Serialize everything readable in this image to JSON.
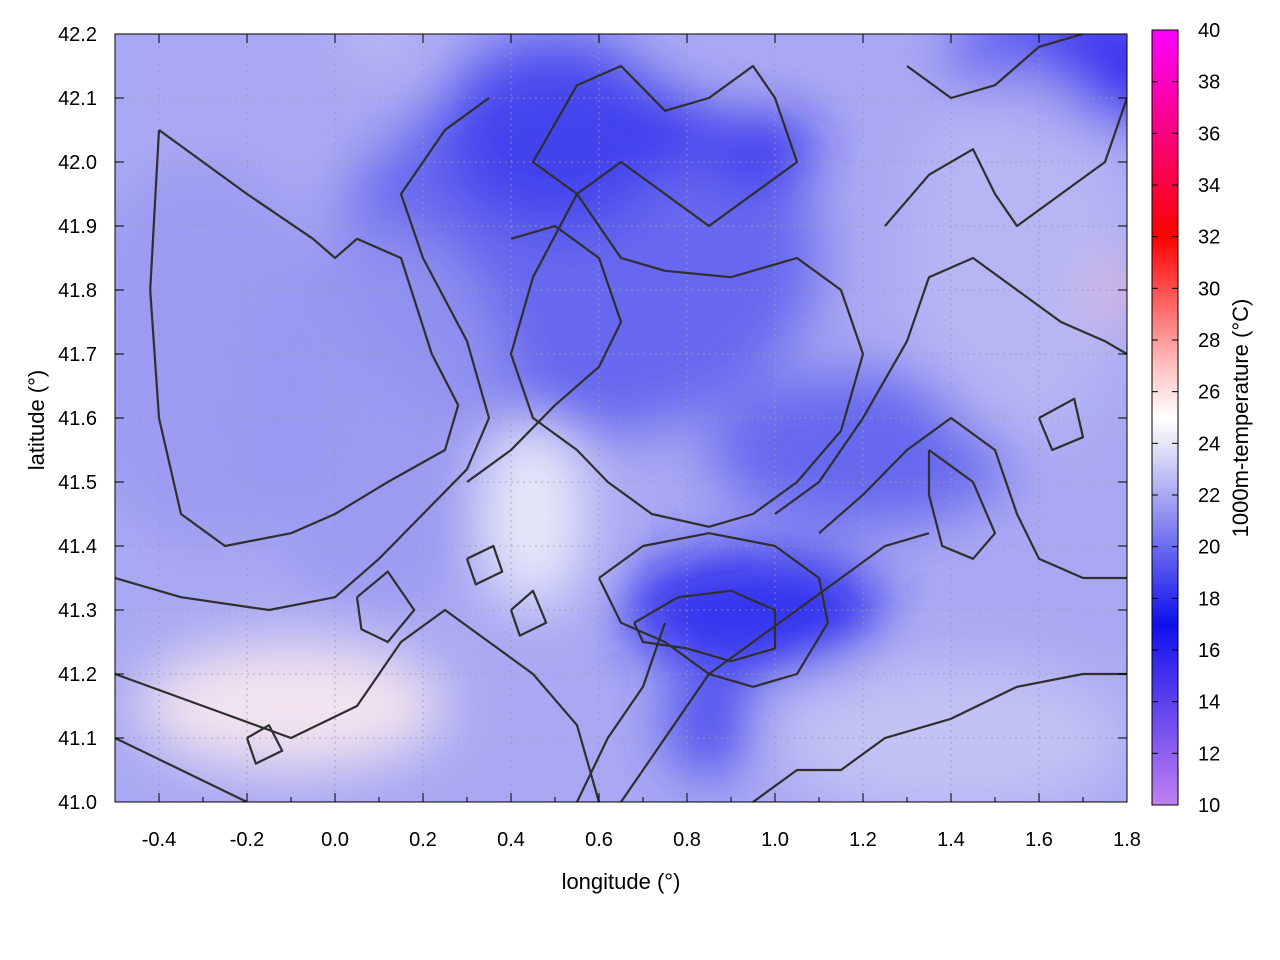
{
  "chart_data": {
    "type": "heatmap",
    "title": "",
    "xlabel": "longitude (°)",
    "ylabel": "latitude (°)",
    "colorbar_label": "1000m-temperature (°C)",
    "xlim": [
      -0.5,
      1.8
    ],
    "ylim": [
      41.0,
      42.2
    ],
    "clim": [
      10,
      40
    ],
    "x_ticks": [
      "-0.4",
      "-0.2",
      "0.0",
      "0.2",
      "0.4",
      "0.6",
      "0.8",
      "1.0",
      "1.2",
      "1.4",
      "1.6",
      "1.8"
    ],
    "x_tick_values": [
      -0.4,
      -0.2,
      0.0,
      0.2,
      0.4,
      0.6,
      0.8,
      1.0,
      1.2,
      1.4,
      1.6,
      1.8
    ],
    "y_ticks": [
      "41.0",
      "41.1",
      "41.2",
      "41.3",
      "41.4",
      "41.5",
      "41.6",
      "41.7",
      "41.8",
      "41.9",
      "42.0",
      "42.1",
      "42.2"
    ],
    "y_tick_values": [
      41.0,
      41.1,
      41.2,
      41.3,
      41.4,
      41.5,
      41.6,
      41.7,
      41.8,
      41.9,
      42.0,
      42.1,
      42.2
    ],
    "colorbar_ticks": [
      "10",
      "12",
      "14",
      "16",
      "18",
      "20",
      "22",
      "24",
      "26",
      "28",
      "30",
      "32",
      "34",
      "36",
      "38",
      "40"
    ],
    "colorbar_tick_values": [
      10,
      12,
      14,
      16,
      18,
      20,
      22,
      24,
      26,
      28,
      30,
      32,
      34,
      36,
      38,
      40
    ],
    "colormap": [
      {
        "value": 10,
        "color": "#c080f0"
      },
      {
        "value": 17,
        "color": "#1010ee"
      },
      {
        "value": 21,
        "color": "#8a8af0"
      },
      {
        "value": 24,
        "color": "#e6e6f8"
      },
      {
        "value": 25,
        "color": "#ffffff"
      },
      {
        "value": 27,
        "color": "#ffc0c0"
      },
      {
        "value": 32,
        "color": "#ff0000"
      },
      {
        "value": 40,
        "color": "#ff00ff"
      }
    ],
    "grid": true,
    "field_regions": [
      {
        "lon": 0.55,
        "lat": 41.85,
        "temp": 19.5,
        "rx": 0.55,
        "ry": 0.28
      },
      {
        "lon": 0.5,
        "lat": 42.05,
        "temp": 18.5,
        "rx": 0.25,
        "ry": 0.15
      },
      {
        "lon": 0.78,
        "lat": 42.05,
        "temp": 16.0,
        "rx": 0.08,
        "ry": 0.04
      },
      {
        "lon": 0.98,
        "lat": 42.02,
        "temp": 16.5,
        "rx": 0.12,
        "ry": 0.05
      },
      {
        "lon": 1.7,
        "lat": 42.15,
        "temp": 16.0,
        "rx": 0.3,
        "ry": 0.1
      },
      {
        "lon": 0.95,
        "lat": 41.3,
        "temp": 17.5,
        "rx": 0.3,
        "ry": 0.1
      },
      {
        "lon": 0.85,
        "lat": 41.12,
        "temp": 18.5,
        "rx": 0.1,
        "ry": 0.08
      },
      {
        "lon": 1.2,
        "lat": 41.55,
        "temp": 19.5,
        "rx": 0.35,
        "ry": 0.12
      },
      {
        "lon": -0.3,
        "lat": 41.7,
        "temp": 21.5,
        "rx": 0.3,
        "ry": 0.3
      },
      {
        "lon": 0.1,
        "lat": 41.6,
        "temp": 21.5,
        "rx": 0.3,
        "ry": 0.3
      },
      {
        "lon": 1.55,
        "lat": 41.85,
        "temp": 22.5,
        "rx": 0.25,
        "ry": 0.3
      },
      {
        "lon": 0.45,
        "lat": 41.45,
        "temp": 24.5,
        "rx": 0.12,
        "ry": 0.15
      },
      {
        "lon": -0.1,
        "lat": 41.15,
        "temp": 25.5,
        "rx": 0.35,
        "ry": 0.1
      },
      {
        "lon": 1.4,
        "lat": 41.1,
        "temp": 23.0,
        "rx": 0.4,
        "ry": 0.12
      },
      {
        "lon": 1.77,
        "lat": 41.8,
        "temp": 27.0,
        "rx": 0.04,
        "ry": 0.05
      },
      {
        "lon": 0.1,
        "lat": 42.2,
        "temp": 25.5,
        "rx": 0.05,
        "ry": 0.02
      }
    ],
    "contours": [
      [
        [
          -0.4,
          42.05
        ],
        [
          -0.2,
          41.95
        ],
        [
          -0.05,
          41.88
        ],
        [
          0.0,
          41.85
        ],
        [
          0.05,
          41.88
        ],
        [
          0.15,
          41.85
        ],
        [
          0.22,
          41.7
        ],
        [
          0.28,
          41.62
        ],
        [
          0.25,
          41.55
        ],
        [
          0.12,
          41.5
        ],
        [
          0.0,
          41.45
        ],
        [
          -0.1,
          41.42
        ],
        [
          -0.25,
          41.4
        ],
        [
          -0.35,
          41.45
        ],
        [
          -0.4,
          41.6
        ],
        [
          -0.42,
          41.8
        ],
        [
          -0.4,
          42.05
        ]
      ],
      [
        [
          -0.5,
          41.35
        ],
        [
          -0.35,
          41.32
        ],
        [
          -0.15,
          41.3
        ],
        [
          0.0,
          41.32
        ],
        [
          0.1,
          41.38
        ],
        [
          0.2,
          41.45
        ],
        [
          0.3,
          41.52
        ],
        [
          0.35,
          41.6
        ],
        [
          0.3,
          41.72
        ],
        [
          0.2,
          41.85
        ],
        [
          0.15,
          41.95
        ],
        [
          0.25,
          42.05
        ],
        [
          0.35,
          42.1
        ]
      ],
      [
        [
          -0.5,
          41.2
        ],
        [
          -0.3,
          41.15
        ],
        [
          -0.1,
          41.1
        ],
        [
          0.05,
          41.15
        ],
        [
          0.15,
          41.25
        ],
        [
          0.25,
          41.3
        ],
        [
          0.35,
          41.25
        ],
        [
          0.45,
          41.2
        ],
        [
          0.55,
          41.12
        ],
        [
          0.6,
          41.0
        ]
      ],
      [
        [
          -0.5,
          41.1
        ],
        [
          -0.35,
          41.05
        ],
        [
          -0.2,
          41.0
        ]
      ],
      [
        [
          0.45,
          42.0
        ],
        [
          0.55,
          42.12
        ],
        [
          0.65,
          42.15
        ],
        [
          0.75,
          42.08
        ],
        [
          0.85,
          42.1
        ],
        [
          0.95,
          42.15
        ],
        [
          1.0,
          42.1
        ],
        [
          1.05,
          42.0
        ],
        [
          0.95,
          41.95
        ],
        [
          0.85,
          41.9
        ],
        [
          0.75,
          41.95
        ],
        [
          0.65,
          42.0
        ],
        [
          0.55,
          41.95
        ],
        [
          0.45,
          42.0
        ]
      ],
      [
        [
          0.55,
          41.95
        ],
        [
          0.65,
          41.85
        ],
        [
          0.75,
          41.83
        ],
        [
          0.9,
          41.82
        ],
        [
          1.05,
          41.85
        ],
        [
          1.15,
          41.8
        ],
        [
          1.2,
          41.7
        ],
        [
          1.15,
          41.58
        ],
        [
          1.05,
          41.5
        ],
        [
          0.95,
          41.45
        ],
        [
          0.85,
          41.43
        ],
        [
          0.72,
          41.45
        ],
        [
          0.62,
          41.5
        ],
        [
          0.55,
          41.55
        ],
        [
          0.45,
          41.6
        ],
        [
          0.4,
          41.7
        ],
        [
          0.45,
          41.82
        ],
        [
          0.55,
          41.95
        ]
      ],
      [
        [
          0.3,
          41.5
        ],
        [
          0.4,
          41.55
        ],
        [
          0.5,
          41.62
        ],
        [
          0.6,
          41.68
        ],
        [
          0.65,
          41.75
        ],
        [
          0.6,
          41.85
        ],
        [
          0.5,
          41.9
        ],
        [
          0.4,
          41.88
        ]
      ],
      [
        [
          0.6,
          41.35
        ],
        [
          0.7,
          41.4
        ],
        [
          0.85,
          41.42
        ],
        [
          1.0,
          41.4
        ],
        [
          1.1,
          41.35
        ],
        [
          1.12,
          41.28
        ],
        [
          1.05,
          41.2
        ],
        [
          0.95,
          41.18
        ],
        [
          0.85,
          41.2
        ],
        [
          0.75,
          41.25
        ],
        [
          0.65,
          41.28
        ],
        [
          0.6,
          41.35
        ]
      ],
      [
        [
          0.68,
          41.28
        ],
        [
          0.78,
          41.32
        ],
        [
          0.9,
          41.33
        ],
        [
          1.0,
          41.3
        ],
        [
          1.0,
          41.24
        ],
        [
          0.9,
          41.22
        ],
        [
          0.8,
          41.24
        ],
        [
          0.7,
          41.25
        ],
        [
          0.68,
          41.28
        ]
      ],
      [
        [
          0.65,
          41.0
        ],
        [
          0.75,
          41.1
        ],
        [
          0.85,
          41.2
        ],
        [
          0.95,
          41.25
        ],
        [
          1.05,
          41.3
        ],
        [
          1.15,
          41.35
        ],
        [
          1.25,
          41.4
        ],
        [
          1.35,
          41.42
        ]
      ],
      [
        [
          0.55,
          41.0
        ],
        [
          0.62,
          41.1
        ],
        [
          0.7,
          41.18
        ],
        [
          0.75,
          41.28
        ]
      ],
      [
        [
          0.95,
          41.0
        ],
        [
          1.05,
          41.05
        ],
        [
          1.15,
          41.05
        ],
        [
          1.25,
          41.1
        ],
        [
          1.4,
          41.13
        ],
        [
          1.55,
          41.18
        ],
        [
          1.7,
          41.2
        ],
        [
          1.8,
          41.2
        ]
      ],
      [
        [
          1.25,
          41.9
        ],
        [
          1.35,
          41.98
        ],
        [
          1.45,
          42.02
        ],
        [
          1.5,
          41.95
        ],
        [
          1.55,
          41.9
        ],
        [
          1.65,
          41.95
        ],
        [
          1.75,
          42.0
        ],
        [
          1.8,
          42.1
        ]
      ],
      [
        [
          1.3,
          42.15
        ],
        [
          1.4,
          42.1
        ],
        [
          1.5,
          42.12
        ],
        [
          1.6,
          42.18
        ],
        [
          1.7,
          42.2
        ]
      ],
      [
        [
          1.0,
          41.45
        ],
        [
          1.1,
          41.5
        ],
        [
          1.2,
          41.6
        ],
        [
          1.3,
          41.72
        ],
        [
          1.35,
          41.82
        ],
        [
          1.45,
          41.85
        ],
        [
          1.55,
          41.8
        ],
        [
          1.65,
          41.75
        ],
        [
          1.75,
          41.72
        ],
        [
          1.8,
          41.7
        ]
      ],
      [
        [
          1.1,
          41.42
        ],
        [
          1.2,
          41.48
        ],
        [
          1.3,
          41.55
        ],
        [
          1.4,
          41.6
        ],
        [
          1.5,
          41.55
        ],
        [
          1.55,
          41.45
        ],
        [
          1.6,
          41.38
        ],
        [
          1.7,
          41.35
        ],
        [
          1.8,
          41.35
        ]
      ],
      [
        [
          1.35,
          41.55
        ],
        [
          1.45,
          41.5
        ],
        [
          1.5,
          41.42
        ],
        [
          1.45,
          41.38
        ],
        [
          1.38,
          41.4
        ],
        [
          1.35,
          41.48
        ],
        [
          1.35,
          41.55
        ]
      ],
      [
        [
          1.6,
          41.6
        ],
        [
          1.68,
          41.63
        ],
        [
          1.7,
          41.57
        ],
        [
          1.63,
          41.55
        ],
        [
          1.6,
          41.6
        ]
      ],
      [
        [
          0.05,
          41.32
        ],
        [
          0.12,
          41.36
        ],
        [
          0.18,
          41.3
        ],
        [
          0.12,
          41.25
        ],
        [
          0.06,
          41.27
        ],
        [
          0.05,
          41.32
        ]
      ],
      [
        [
          -0.2,
          41.1
        ],
        [
          -0.15,
          41.12
        ],
        [
          -0.12,
          41.08
        ],
        [
          -0.18,
          41.06
        ],
        [
          -0.2,
          41.1
        ]
      ],
      [
        [
          0.4,
          41.3
        ],
        [
          0.45,
          41.33
        ],
        [
          0.48,
          41.28
        ],
        [
          0.42,
          41.26
        ],
        [
          0.4,
          41.3
        ]
      ],
      [
        [
          0.3,
          41.38
        ],
        [
          0.36,
          41.4
        ],
        [
          0.38,
          41.36
        ],
        [
          0.32,
          41.34
        ],
        [
          0.3,
          41.38
        ]
      ]
    ]
  }
}
